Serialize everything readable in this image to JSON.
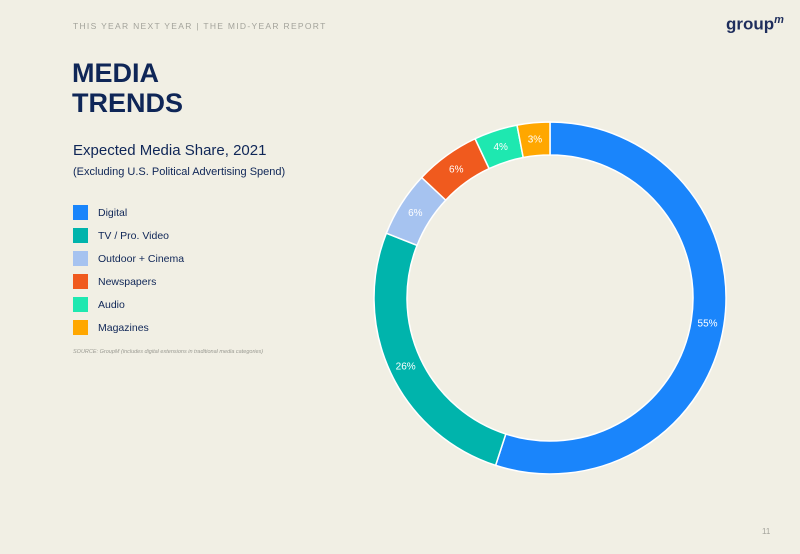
{
  "header": "THIS YEAR NEXT YEAR | THE MID-YEAR REPORT",
  "logo": {
    "text": "group",
    "sup": "m"
  },
  "title_line1": "MEDIA",
  "title_line2": "TRENDS",
  "page_number": "11",
  "source": "SOURCE: GroupM (includes digital extensions in traditional media categories)",
  "chart_data": {
    "type": "pie",
    "donut": true,
    "title": "Expected Media Share, 2021",
    "subtitle": "(Excluding U.S. Political Advertising Spend)",
    "legend_position": "left",
    "categories": [
      "Digital",
      "TV / Pro. Video",
      "Outdoor + Cinema",
      "Newspapers",
      "Audio",
      "Magazines"
    ],
    "values": [
      55,
      26,
      6,
      6,
      4,
      3
    ],
    "labels": [
      "55%",
      "26%",
      "6%",
      "6%",
      "4%",
      "3%"
    ],
    "colors": [
      "#1a85fb",
      "#00b4ac",
      "#a6c3f0",
      "#f05a1e",
      "#1ee8b0",
      "#ffa700"
    ]
  }
}
